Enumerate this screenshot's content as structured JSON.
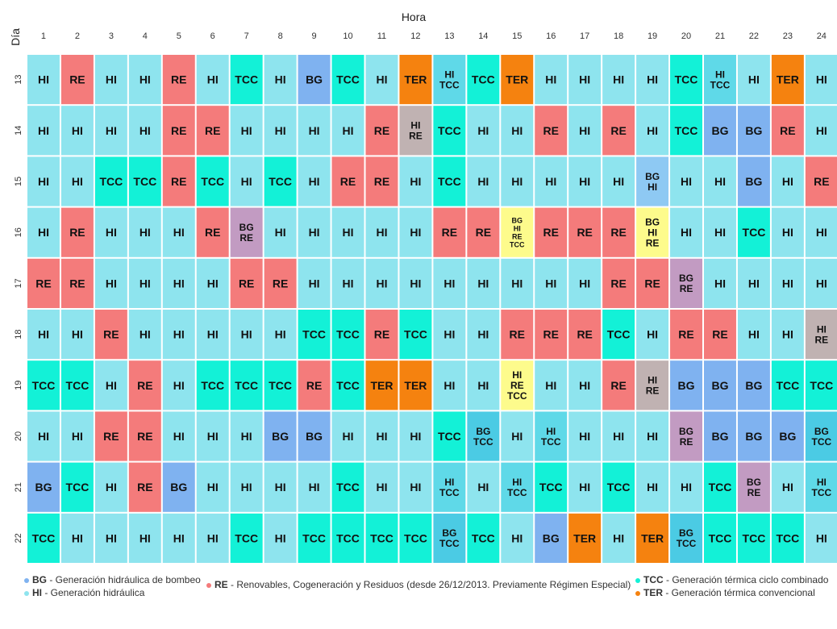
{
  "chart_data": {
    "type": "heatmap",
    "xlabel": "Hora",
    "ylabel": "Día",
    "x": [
      1,
      2,
      3,
      4,
      5,
      6,
      7,
      8,
      9,
      10,
      11,
      12,
      13,
      14,
      15,
      16,
      17,
      18,
      19,
      20,
      21,
      22,
      23,
      24
    ],
    "y": [
      13,
      14,
      15,
      16,
      17,
      18,
      19,
      20,
      21,
      22
    ],
    "categories": {
      "BG": {
        "label": "Generación hidráulica de bombeo",
        "color": "#7fb2f0"
      },
      "HI": {
        "label": "Generación hidráulica",
        "color": "#8ee4ee"
      },
      "RE": {
        "label": "Renovables, Cogeneración y Residuos (desde 26/12/2013. Previamente Régimen Especial)",
        "color": "#f47b7b"
      },
      "TCC": {
        "label": "Generación térmica ciclo combinado",
        "color": "#13f1d7"
      },
      "TER": {
        "label": "Generación térmica convencional",
        "color": "#f5820f"
      }
    },
    "combo_colors": {
      "HI+TCC": "#5fd9e8",
      "HI+RE": "#c0b2b2",
      "BG+TCC": "#4bcbe4",
      "BG+RE": "#c29bc2",
      "BG+HI": "#8ec9f3",
      "3+": "#fdfb8c"
    },
    "cells": [
      [
        "HI",
        "RE",
        "HI",
        "HI",
        "RE",
        "HI",
        "TCC",
        "HI",
        "BG",
        "TCC",
        "HI",
        "TER",
        "HI TCC",
        "TCC",
        "TER",
        "HI",
        "HI",
        "HI",
        "HI",
        "TCC",
        "HI TCC",
        "HI",
        "TER",
        "HI"
      ],
      [
        "HI",
        "HI",
        "HI",
        "HI",
        "RE",
        "RE",
        "HI",
        "HI",
        "HI",
        "HI",
        "RE",
        "HI RE",
        "TCC",
        "HI",
        "HI",
        "RE",
        "HI",
        "RE",
        "HI",
        "TCC",
        "BG",
        "BG",
        "RE",
        "HI"
      ],
      [
        "HI",
        "HI",
        "TCC",
        "TCC",
        "RE",
        "TCC",
        "HI",
        "TCC",
        "HI",
        "RE",
        "RE",
        "HI",
        "TCC",
        "HI",
        "HI",
        "HI",
        "HI",
        "HI",
        "BG HI",
        "HI",
        "HI",
        "BG",
        "HI",
        "RE"
      ],
      [
        "HI",
        "RE",
        "HI",
        "HI",
        "HI",
        "RE",
        "BG RE",
        "HI",
        "HI",
        "HI",
        "HI",
        "HI",
        "RE",
        "RE",
        "BG HI RE TCC",
        "RE",
        "RE",
        "RE",
        "BG HI RE",
        "HI",
        "HI",
        "TCC",
        "HI",
        "HI"
      ],
      [
        "RE",
        "RE",
        "HI",
        "HI",
        "HI",
        "HI",
        "RE",
        "RE",
        "HI",
        "HI",
        "HI",
        "HI",
        "HI",
        "HI",
        "HI",
        "HI",
        "HI",
        "RE",
        "RE",
        "BG RE",
        "HI",
        "HI",
        "HI",
        "HI"
      ],
      [
        "HI",
        "HI",
        "RE",
        "HI",
        "HI",
        "HI",
        "HI",
        "HI",
        "TCC",
        "TCC",
        "RE",
        "TCC",
        "HI",
        "HI",
        "RE",
        "RE",
        "RE",
        "TCC",
        "HI",
        "RE",
        "RE",
        "HI",
        "HI",
        "HI RE"
      ],
      [
        "TCC",
        "TCC",
        "HI",
        "RE",
        "HI",
        "TCC",
        "TCC",
        "TCC",
        "RE",
        "TCC",
        "TER",
        "TER",
        "HI",
        "HI",
        "HI RE TCC",
        "HI",
        "HI",
        "RE",
        "HI RE",
        "BG",
        "BG",
        "BG",
        "TCC",
        "TCC"
      ],
      [
        "HI",
        "HI",
        "RE",
        "RE",
        "HI",
        "HI",
        "HI",
        "BG",
        "BG",
        "HI",
        "HI",
        "HI",
        "TCC",
        "BG TCC",
        "HI",
        "HI TCC",
        "HI",
        "HI",
        "HI",
        "BG RE",
        "BG",
        "BG",
        "BG",
        "BG TCC"
      ],
      [
        "BG",
        "TCC",
        "HI",
        "RE",
        "BG",
        "HI",
        "HI",
        "HI",
        "HI",
        "TCC",
        "HI",
        "HI",
        "HI TCC",
        "HI",
        "HI TCC",
        "TCC",
        "HI",
        "TCC",
        "HI",
        "HI",
        "TCC",
        "BG RE",
        "HI",
        "HI TCC"
      ],
      [
        "TCC",
        "HI",
        "HI",
        "HI",
        "HI",
        "HI",
        "TCC",
        "HI",
        "TCC",
        "TCC",
        "TCC",
        "TCC",
        "BG TCC",
        "TCC",
        "HI",
        "BG",
        "TER",
        "HI",
        "TER",
        "BG TCC",
        "TCC",
        "TCC",
        "TCC",
        "HI"
      ]
    ]
  },
  "legend": [
    {
      "code": "BG",
      "sep": " - ",
      "label": "Generación hidráulica de bombeo",
      "color": "#7fb2f0"
    },
    {
      "code": "HI",
      "sep": " - ",
      "label": "Generación hidráulica",
      "color": "#8ee4ee"
    },
    {
      "code": "RE",
      "sep": " - ",
      "label": "Renovables, Cogeneración y Residuos (desde 26/12/2013. Previamente Régimen Especial)",
      "color": "#f47b7b"
    },
    {
      "code": "TCC",
      "sep": " - ",
      "label": "Generación térmica ciclo combinado",
      "color": "#13f1d7"
    },
    {
      "code": "TER",
      "sep": " - ",
      "label": "Generación térmica convencional",
      "color": "#f5820f"
    }
  ]
}
